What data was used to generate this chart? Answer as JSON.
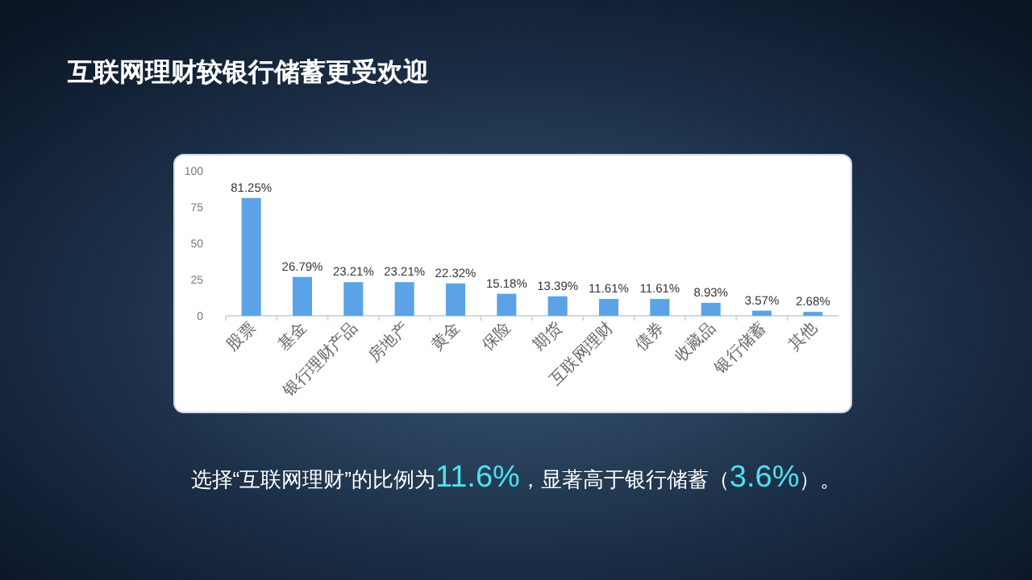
{
  "chart_data": {
    "type": "bar",
    "title": "互联网理财较银行储蓄更受欢迎",
    "categories": [
      "股票",
      "基金",
      "银行理财产品",
      "房地产",
      "黄金",
      "保险",
      "期货",
      "互联网理财",
      "债券",
      "收藏品",
      "银行储蓄",
      "其他"
    ],
    "values": [
      81.25,
      26.79,
      23.21,
      23.21,
      22.32,
      15.18,
      13.39,
      11.61,
      11.61,
      8.93,
      3.57,
      2.68
    ],
    "value_labels": [
      "81.25%",
      "26.79%",
      "23.21%",
      "23.21%",
      "22.32%",
      "15.18%",
      "13.39%",
      "11.61%",
      "11.61%",
      "8.93%",
      "3.57%",
      "2.68%"
    ],
    "color": "#5ba3e6",
    "ylim": [
      0,
      100
    ],
    "yticks": [
      0,
      25,
      50,
      75,
      100
    ],
    "annotations": [
      "选择“互联网理财”的比例为11.6%，显著高于银行储蓄（3.6%）。"
    ]
  }
}
